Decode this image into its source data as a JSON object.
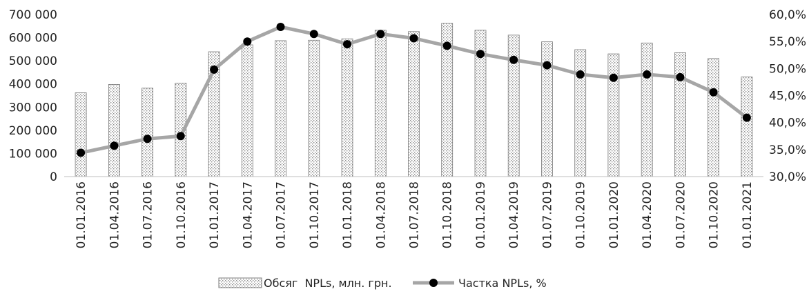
{
  "chart_data": {
    "type": "bar+line",
    "categories": [
      "01.01.2016",
      "01.04.2016",
      "01.07.2016",
      "01.10.2016",
      "01.01.2017",
      "01.04.2017",
      "01.07.2017",
      "01.10.2017",
      "01.01.2018",
      "01.04.2018",
      "01.07.2018",
      "01.10.2018",
      "01.01.2019",
      "01.04.2019",
      "01.07.2019",
      "01.10.2019",
      "01.01.2020",
      "01.04.2020",
      "01.07.2020",
      "01.10.2020",
      "01.01.2021"
    ],
    "series": [
      {
        "name": "Обсяг  NPLs, млн. грн.",
        "type": "bar",
        "axis": "left",
        "values": [
          362000,
          398000,
          382000,
          404000,
          539000,
          569000,
          587000,
          589000,
          595000,
          632000,
          626000,
          662000,
          632000,
          611000,
          582000,
          548000,
          530000,
          577000,
          535000,
          510000,
          430000
        ]
      },
      {
        "name": "Частка NPLs, %",
        "type": "line",
        "axis": "right",
        "values": [
          34.4,
          35.7,
          37.0,
          37.5,
          49.8,
          55.0,
          57.7,
          56.4,
          54.5,
          56.4,
          55.6,
          54.2,
          52.7,
          51.6,
          50.6,
          48.9,
          48.3,
          48.9,
          48.4,
          45.6,
          40.9
        ]
      }
    ],
    "y_left": {
      "ylim": [
        0,
        700000
      ],
      "ticks": [
        0,
        100000,
        200000,
        300000,
        400000,
        500000,
        600000,
        700000
      ],
      "tick_labels": [
        "0",
        "100 000",
        "200 000",
        "300 000",
        "400 000",
        "500 000",
        "600 000",
        "700 000"
      ]
    },
    "y_right": {
      "ylim": [
        30,
        60
      ],
      "ticks": [
        30,
        35,
        40,
        45,
        50,
        55,
        60
      ],
      "tick_labels": [
        "30,0%",
        "35,0%",
        "40,0%",
        "45,0%",
        "50,0%",
        "55,0%",
        "60,0%"
      ]
    },
    "grid": false,
    "legend": "bottom-center",
    "colors": {
      "bar_fill": "#ffffff",
      "bar_pattern": "#9a9a9a",
      "bar_edge": "#7a7a7a",
      "line": "#a6a6a6",
      "marker": "#000000",
      "axis": "#bfbfbf"
    }
  }
}
